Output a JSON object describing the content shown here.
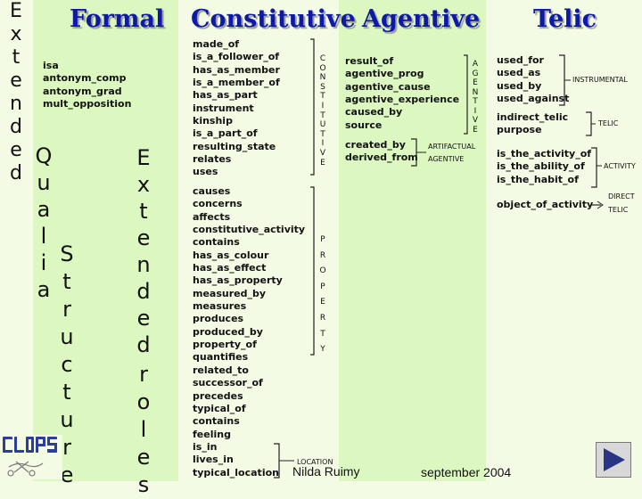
{
  "titles": {
    "formal": "Formal",
    "constitutive": "Constitutive",
    "agentive": "Agentive",
    "telic": "Telic"
  },
  "vertical_text": {
    "extended": "Extended",
    "qualia_structure": [
      "Qualia",
      "Structure"
    ],
    "extended_roles": [
      "Extended",
      "roles"
    ],
    "constitutive_tag": "CONSTITUTIVE",
    "agentive_tag": "AGENTIVE",
    "property_tag": "PROPERTY"
  },
  "formal": {
    "relations": [
      "isa",
      "antonym_comp",
      "antonym_grad",
      "mult_opposition"
    ]
  },
  "constitutive": {
    "group1": [
      "made_of",
      "is_a_follower_of",
      "has_as_member",
      "is_a_member_of",
      "has_as_part",
      "instrument",
      "kinship",
      "is_a_part_of",
      "resulting_state",
      "relates",
      "uses"
    ],
    "group2": [
      "causes",
      "concerns",
      "affects",
      "constitutive_activity",
      "contains",
      "has_as_colour",
      "has_as_effect",
      "has_as_property",
      "measured_by",
      "measures",
      "produces",
      "produced_by",
      "property_of",
      "quantifies",
      "related_to",
      "successor_of",
      "precedes",
      "typical_of",
      "contains",
      "feeling",
      "is_in",
      "lives_in",
      "typical_location"
    ],
    "location_label": "LOCATION"
  },
  "agentive": {
    "group1": [
      "result_of",
      "agentive_prog",
      "agentive_cause",
      "agentive_experience",
      "caused_by",
      "source"
    ],
    "group2": [
      "created_by",
      "derived_from"
    ],
    "artifactual_label": "ARTIFACTUAL",
    "artifactual_agentive_label": "AGENTIVE"
  },
  "telic": {
    "instrumental_group": [
      "used_for",
      "used_as",
      "used_by",
      "used_against"
    ],
    "instrumental_label": "INSTRUMENTAL",
    "telic_group": [
      "indirect_telic",
      "purpose"
    ],
    "telic_label": "TELIC",
    "activity_group": [
      "is_the_activity_of",
      "is_the_ability_of",
      "is_the_habit_of"
    ],
    "activity_label": "ACTIVITY",
    "direct_group": [
      "object_of_activity"
    ],
    "direct_label_line1": "DIRECT",
    "direct_label_line2": "TELIC"
  },
  "footer": {
    "author": "Nilda Ruimy",
    "date": "september 2004"
  },
  "logo": {
    "text": "CLIPS"
  },
  "colors": {
    "title": "#0c1aa6",
    "panel_light": "#f4fbe4",
    "panel_green": "#dcf7bf",
    "logo_blue": "#2b3f9a",
    "nav_arrow": "#2a3585"
  },
  "icons": {
    "next": "next-arrow-icon",
    "logo": "clips-logo-icon"
  }
}
